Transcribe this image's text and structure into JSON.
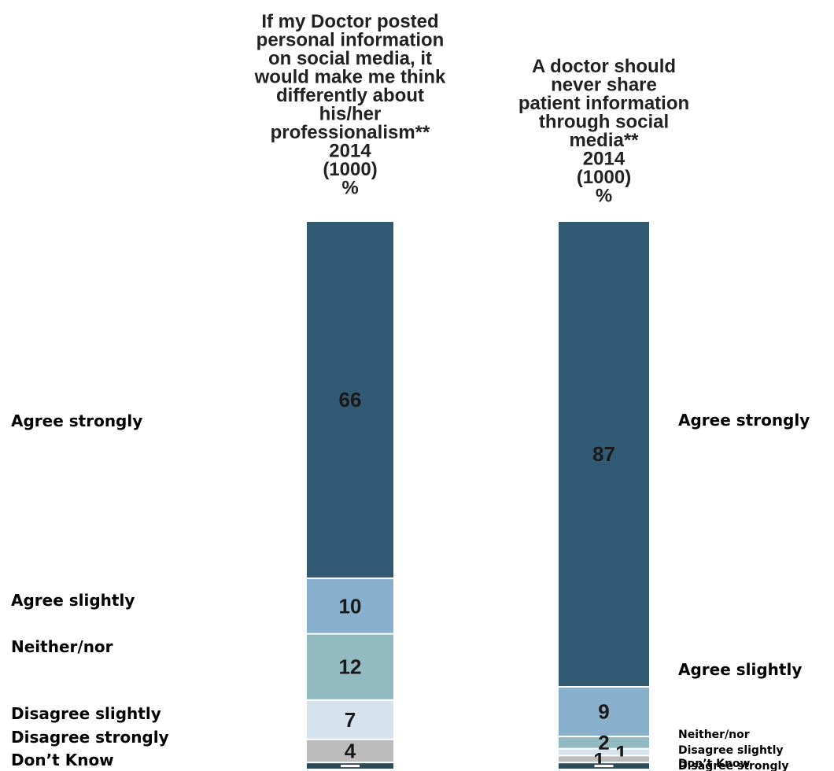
{
  "chart_data": {
    "type": "bar",
    "stacked": true,
    "categories": [
      "Agree strongly",
      "Agree slightly",
      "Neither/nor",
      "Disagree slightly",
      "Disagree strongly",
      "Don’t Know"
    ],
    "colors": [
      "#335a74",
      "#88afcb",
      "#93b9c1",
      "#d6e3ec",
      "#bcbcbc",
      "#2f4a57"
    ],
    "series": [
      {
        "title_lines": [
          "If my Doctor posted",
          "personal information",
          "on social media, it",
          "would make me think",
          "differently about",
          "his/her",
          "professionalism**",
          "2014",
          "(1000)",
          "%"
        ],
        "values": [
          66,
          10,
          12,
          7,
          4,
          1
        ],
        "labels": [
          "66",
          "10",
          "12",
          "7",
          "4",
          ""
        ]
      },
      {
        "title_lines": [
          "A doctor should",
          "never share",
          "patient information",
          "through social",
          "media**",
          "2014",
          "(1000)",
          "%"
        ],
        "values": [
          87,
          9,
          2,
          1,
          1,
          1
        ],
        "labels": [
          "87",
          "9",
          "2",
          "1",
          "1",
          ""
        ]
      }
    ]
  }
}
